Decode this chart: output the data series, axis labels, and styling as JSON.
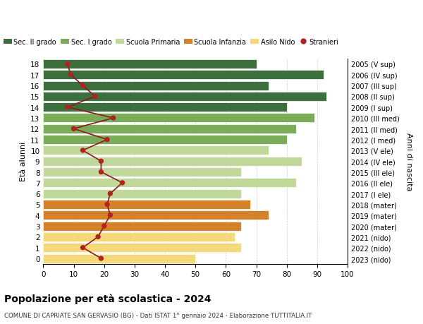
{
  "ages": [
    18,
    17,
    16,
    15,
    14,
    13,
    12,
    11,
    10,
    9,
    8,
    7,
    6,
    5,
    4,
    3,
    2,
    1,
    0
  ],
  "right_labels": [
    "2005 (V sup)",
    "2006 (IV sup)",
    "2007 (III sup)",
    "2008 (II sup)",
    "2009 (I sup)",
    "2010 (III med)",
    "2011 (II med)",
    "2012 (I med)",
    "2013 (V ele)",
    "2014 (IV ele)",
    "2015 (III ele)",
    "2016 (II ele)",
    "2017 (I ele)",
    "2018 (mater)",
    "2019 (mater)",
    "2020 (mater)",
    "2021 (nido)",
    "2022 (nido)",
    "2023 (nido)"
  ],
  "bar_values": [
    70,
    92,
    74,
    93,
    80,
    89,
    83,
    80,
    74,
    85,
    65,
    83,
    65,
    68,
    74,
    65,
    63,
    65,
    50
  ],
  "bar_colors": [
    "#3d6e3d",
    "#3d6e3d",
    "#3d6e3d",
    "#3d6e3d",
    "#3d6e3d",
    "#7aac5a",
    "#7aac5a",
    "#7aac5a",
    "#c0d89a",
    "#c0d89a",
    "#c0d89a",
    "#c0d89a",
    "#c0d89a",
    "#d4822a",
    "#d4822a",
    "#d4822a",
    "#f5d87a",
    "#f5d87a",
    "#f5d87a"
  ],
  "stranieri_values": [
    8,
    9,
    13,
    17,
    8,
    23,
    10,
    21,
    13,
    19,
    19,
    26,
    22,
    21,
    22,
    20,
    18,
    13,
    19
  ],
  "legend_labels": [
    "Sec. II grado",
    "Sec. I grado",
    "Scuola Primaria",
    "Scuola Infanzia",
    "Asilo Nido",
    "Stranieri"
  ],
  "legend_colors": [
    "#3d6e3d",
    "#7aac5a",
    "#c0d89a",
    "#d4822a",
    "#f5d87a",
    "#b22222"
  ],
  "ylabel_left": "Età alunni",
  "ylabel_right": "Anni di nascita",
  "title": "Popolazione per età scolastica - 2024",
  "subtitle": "COMUNE DI CAPRIATE SAN GERVASIO (BG) - Dati ISTAT 1° gennaio 2024 - Elaborazione TUTTITALIA.IT",
  "xlim": [
    0,
    100
  ],
  "xticks": [
    0,
    10,
    20,
    30,
    40,
    50,
    60,
    70,
    80,
    90,
    100
  ],
  "bg_color": "#ffffff",
  "grid_color": "#cccccc",
  "stranieri_line_color": "#8b1a1a",
  "stranieri_dot_color": "#b22222"
}
